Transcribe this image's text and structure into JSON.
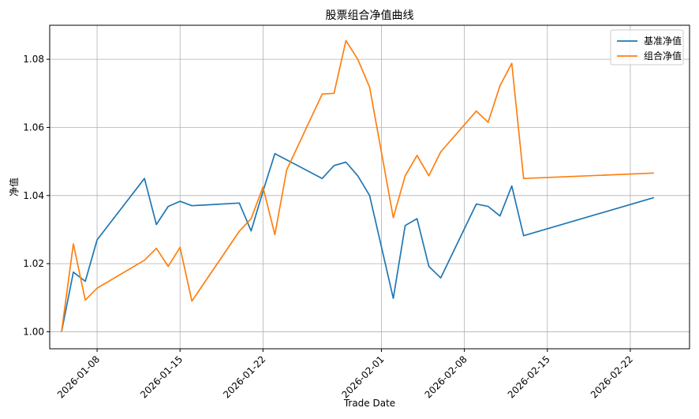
{
  "chart_data": {
    "type": "line",
    "title": "股票组合净值曲线",
    "xlabel": "Trade Date",
    "ylabel": "净值",
    "ylim": [
      0.995,
      1.09
    ],
    "xlim": [
      "2026-01-04",
      "2026-02-27"
    ],
    "grid": true,
    "legend_position": "top-right",
    "yticks": [
      1.0,
      1.02,
      1.04,
      1.06,
      1.08
    ],
    "ytick_labels": [
      "1.00",
      "1.02",
      "1.04",
      "1.06",
      "1.08"
    ],
    "xticks": [
      "2026-01-08",
      "2026-01-15",
      "2026-01-22",
      "2026-02-01",
      "2026-02-08",
      "2026-02-15",
      "2026-02-22"
    ],
    "xtick_labels": [
      "2026-01-08",
      "2026-01-15",
      "2026-01-22",
      "2026-02-01",
      "2026-02-08",
      "2026-02-15",
      "2026-02-22"
    ],
    "series": [
      {
        "name": "基准净值",
        "color": "#1f77b4",
        "points": [
          [
            "2026-01-05",
            1.0
          ],
          [
            "2026-01-06",
            1.0175
          ],
          [
            "2026-01-07",
            1.0148
          ],
          [
            "2026-01-08",
            1.027
          ],
          [
            "2026-01-12",
            1.045
          ],
          [
            "2026-01-13",
            1.0315
          ],
          [
            "2026-01-14",
            1.0368
          ],
          [
            "2026-01-15",
            1.0383
          ],
          [
            "2026-01-16",
            1.037
          ],
          [
            "2026-01-20",
            1.0378
          ],
          [
            "2026-01-21",
            1.0296
          ],
          [
            "2026-01-22",
            1.0412
          ],
          [
            "2026-01-23",
            1.0523
          ],
          [
            "2026-01-27",
            1.045
          ],
          [
            "2026-01-28",
            1.0488
          ],
          [
            "2026-01-29",
            1.0498
          ],
          [
            "2026-01-30",
            1.0458
          ],
          [
            "2026-01-31",
            1.04
          ],
          [
            "2026-02-02",
            1.0098
          ],
          [
            "2026-02-03",
            1.0312
          ],
          [
            "2026-02-04",
            1.0332
          ],
          [
            "2026-02-05",
            1.0192
          ],
          [
            "2026-02-06",
            1.0158
          ],
          [
            "2026-02-09",
            1.0375
          ],
          [
            "2026-02-10",
            1.0368
          ],
          [
            "2026-02-11",
            1.034
          ],
          [
            "2026-02-12",
            1.0428
          ],
          [
            "2026-02-13",
            1.0282
          ],
          [
            "2026-02-24",
            1.0394
          ]
        ]
      },
      {
        "name": "组合净值",
        "color": "#ff7f0e",
        "points": [
          [
            "2026-01-05",
            1.0
          ],
          [
            "2026-01-06",
            1.0258
          ],
          [
            "2026-01-07",
            1.0093
          ],
          [
            "2026-01-08",
            1.0128
          ],
          [
            "2026-01-12",
            1.021
          ],
          [
            "2026-01-13",
            1.0245
          ],
          [
            "2026-01-14",
            1.0192
          ],
          [
            "2026-01-15",
            1.0248
          ],
          [
            "2026-01-16",
            1.009
          ],
          [
            "2026-01-20",
            1.0295
          ],
          [
            "2026-01-21",
            1.0332
          ],
          [
            "2026-01-22",
            1.0425
          ],
          [
            "2026-01-23",
            1.0285
          ],
          [
            "2026-01-24",
            1.0475
          ],
          [
            "2026-01-27",
            1.0698
          ],
          [
            "2026-01-28",
            1.07
          ],
          [
            "2026-01-29",
            1.0855
          ],
          [
            "2026-01-30",
            1.08
          ],
          [
            "2026-01-31",
            1.0718
          ],
          [
            "2026-02-02",
            1.0335
          ],
          [
            "2026-02-03",
            1.0458
          ],
          [
            "2026-02-04",
            1.0518
          ],
          [
            "2026-02-05",
            1.0458
          ],
          [
            "2026-02-06",
            1.0528
          ],
          [
            "2026-02-09",
            1.0648
          ],
          [
            "2026-02-10",
            1.0615
          ],
          [
            "2026-02-11",
            1.0722
          ],
          [
            "2026-02-12",
            1.0788
          ],
          [
            "2026-02-13",
            1.045
          ],
          [
            "2026-02-24",
            1.0466
          ]
        ]
      }
    ]
  }
}
